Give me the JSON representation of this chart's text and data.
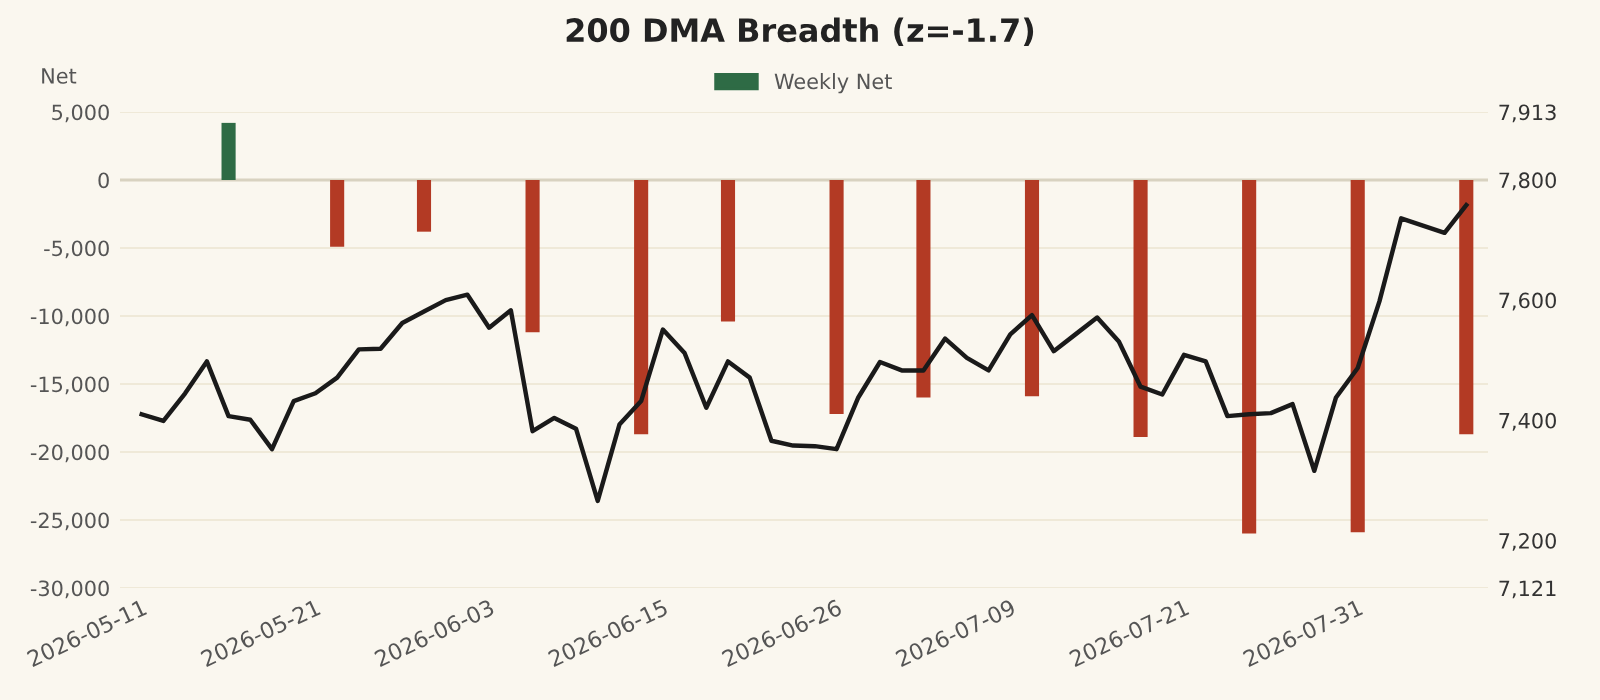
{
  "chart_data": {
    "type": "bar",
    "title": "200 DMA Breadth (z=-1.7)",
    "ylabel": "Net",
    "categories": [
      "2026-05-11",
      null,
      null,
      null,
      null,
      null,
      null,
      null,
      "2026-05-21",
      null,
      null,
      null,
      null,
      null,
      null,
      null,
      "2026-06-03",
      null,
      null,
      null,
      null,
      null,
      null,
      null,
      "2026-06-15",
      null,
      null,
      null,
      null,
      null,
      null,
      null,
      "2026-06-26",
      null,
      null,
      null,
      null,
      null,
      null,
      null,
      "2026-07-09",
      null,
      null,
      null,
      null,
      null,
      null,
      null,
      "2026-07-21",
      null,
      null,
      null,
      null,
      null,
      null,
      null,
      "2026-07-31",
      null,
      null,
      null,
      null,
      null
    ],
    "series": [
      {
        "name": "Weekly Net",
        "color": "#2e6b45",
        "colors": [
          null,
          null,
          null,
          null,
          "#2e6b45",
          null,
          null,
          null,
          null,
          "#b33a24",
          null,
          null,
          null,
          "#b33a24",
          null,
          null,
          null,
          null,
          "#b33a24",
          null,
          null,
          null,
          null,
          "#b33a24",
          null,
          null,
          null,
          "#b33a24",
          null,
          null,
          null,
          null,
          "#b33a24",
          null,
          null,
          null,
          "#b33a24",
          null,
          null,
          null,
          null,
          "#b33a24",
          null,
          null,
          null,
          null,
          "#b33a24",
          null,
          null,
          null,
          null,
          "#b33a24",
          null,
          null,
          null,
          null,
          "#b33a24",
          null,
          null,
          null,
          null,
          "#b33a24"
        ],
        "values": [
          null,
          null,
          null,
          null,
          4200,
          null,
          null,
          null,
          null,
          -4900,
          null,
          null,
          null,
          -3800,
          null,
          null,
          null,
          null,
          -11200,
          null,
          null,
          null,
          null,
          -18700,
          null,
          null,
          null,
          -10400,
          null,
          null,
          null,
          null,
          -17200,
          null,
          null,
          null,
          -16000,
          null,
          null,
          null,
          null,
          -15900,
          null,
          null,
          null,
          null,
          -18900,
          null,
          null,
          null,
          null,
          -26000,
          null,
          null,
          null,
          null,
          -25900,
          null,
          null,
          null,
          null,
          -18700
        ]
      },
      {
        "type": "line",
        "axis": "y2",
        "color": "#1a1a1a",
        "values": [
          7410,
          7399,
          7445,
          7498,
          7407,
          7401,
          7352,
          7432,
          7445,
          7471,
          7518,
          7519,
          7562,
          7581,
          7600,
          7609,
          7554,
          7583,
          7382,
          7404,
          7386,
          7266,
          7393,
          7432,
          7551,
          7512,
          7421,
          7498,
          7471,
          7366,
          7358,
          7357,
          7352,
          7438,
          7497,
          7483,
          7483,
          7536,
          7504,
          7483,
          7543,
          7575,
          7515,
          7543,
          7571,
          7531,
          7456,
          7443,
          7509,
          7498,
          7407,
          7410,
          7412,
          7427,
          7316,
          7438,
          7487,
          7598,
          7736,
          7724,
          7712,
          7758
        ]
      }
    ],
    "ylim": [
      -30000,
      5000
    ],
    "yticks": [
      {
        "value": -30000,
        "label": "-30,000"
      },
      {
        "value": -25000,
        "label": "-25,000"
      },
      {
        "value": -20000,
        "label": "-20,000"
      },
      {
        "value": -15000,
        "label": "-15,000"
      },
      {
        "value": -10000,
        "label": "-10,000"
      },
      {
        "value": -5000,
        "label": "-5,000"
      },
      0,
      {
        "value": 5000,
        "label": "5,000"
      }
    ],
    "y2lim": [
      7121,
      7913
    ],
    "y2ticks": [
      {
        "value": 7121,
        "label": "7,121"
      },
      {
        "value": 7200,
        "label": "7,200"
      },
      {
        "value": 7400,
        "label": "7,400"
      },
      {
        "value": 7600,
        "label": "7,600"
      },
      {
        "value": 7800,
        "label": "7,800"
      },
      {
        "value": 7913,
        "label": "7,913"
      }
    ],
    "grid": "y",
    "legend": "top"
  }
}
